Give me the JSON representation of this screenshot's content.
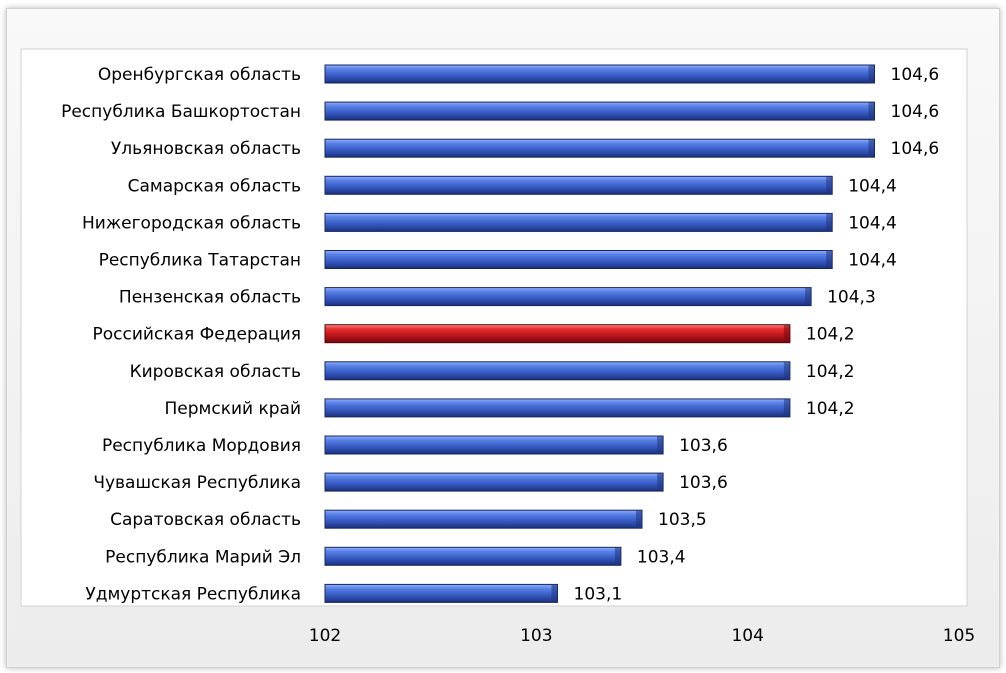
{
  "chart_data": {
    "type": "bar",
    "orientation": "horizontal",
    "categories": [
      "Оренбургская область",
      "Республика Башкортостан",
      "Ульяновская область",
      "Самарская область",
      "Нижегородская область",
      "Республика Татарстан",
      "Пензенская область",
      "Российская Федерация",
      "Кировская область",
      "Пермский край",
      "Республика Мордовия",
      "Чувашская Республика",
      "Саратовская область",
      "Республика Марий Эл",
      "Удмуртская Республика"
    ],
    "values": [
      104.6,
      104.6,
      104.6,
      104.4,
      104.4,
      104.4,
      104.3,
      104.2,
      104.2,
      104.2,
      103.6,
      103.6,
      103.5,
      103.4,
      103.1
    ],
    "value_labels": [
      "104,6",
      "104,6",
      "104,6",
      "104,4",
      "104,4",
      "104,4",
      "104,3",
      "104,2",
      "104,2",
      "104,2",
      "103,6",
      "103,6",
      "103,5",
      "103,4",
      "103,1"
    ],
    "highlight_category": "Российская Федерация",
    "xlim": [
      102,
      105
    ],
    "x_ticks": [
      102,
      103,
      104,
      105
    ],
    "x_tick_labels": [
      "102",
      "103",
      "104",
      "105"
    ],
    "title": "",
    "xlabel": "",
    "ylabel": "",
    "grid": false,
    "legend": false,
    "colors": {
      "bar": "#3a5fc8",
      "bar_highlight": "#c4161c",
      "plot_background": "#ffffff",
      "frame_background": "#f2f2f2"
    }
  }
}
